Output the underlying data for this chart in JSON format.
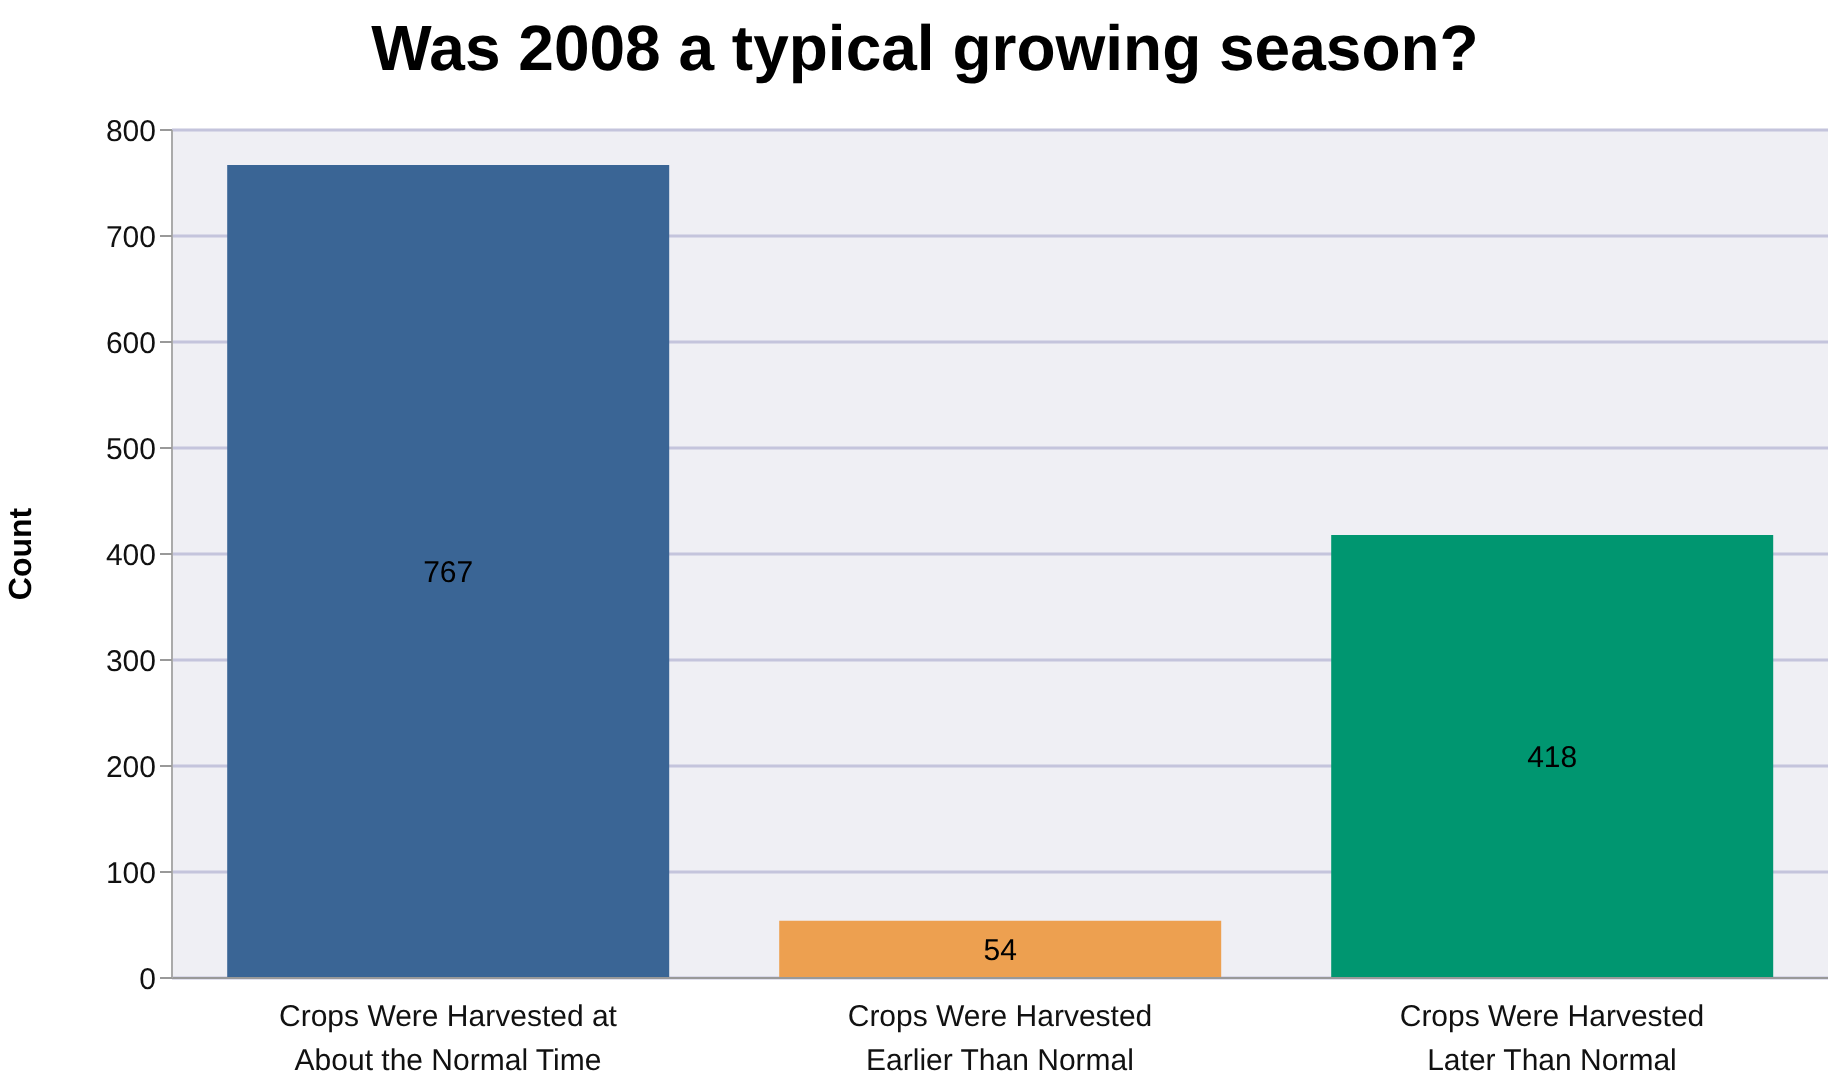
{
  "chart_data": {
    "type": "bar",
    "title": "Was 2008 a typical growing season?",
    "ylabel": "Count",
    "categories": [
      "Crops Were Harvested at About the Normal Time",
      "Crops Were Harvested Earlier Than Normal",
      "Crops Were Harvested Later Than Normal"
    ],
    "values": [
      767,
      54,
      418
    ],
    "colors": [
      "#3a6595",
      "#eda050",
      "#009670"
    ],
    "ylim": [
      0,
      800
    ],
    "yticks": [
      0,
      100,
      200,
      300,
      400,
      500,
      600,
      700,
      800
    ],
    "grid": "y",
    "data_labels": true
  }
}
